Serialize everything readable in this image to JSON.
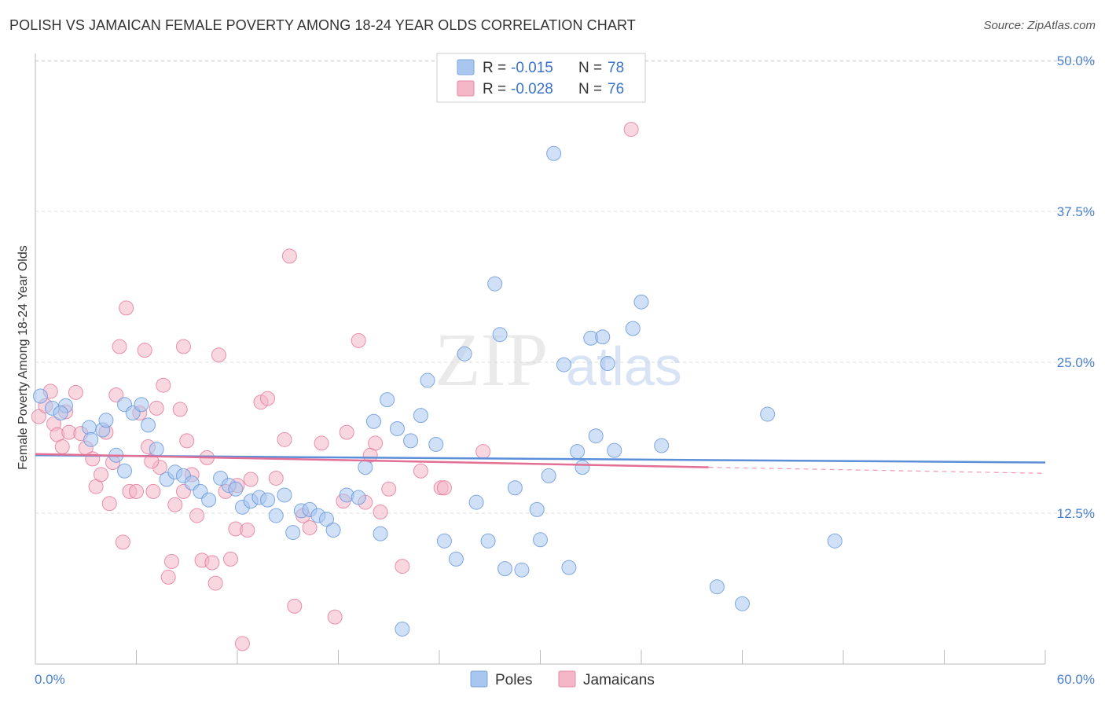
{
  "header": {
    "title": "POLISH VS JAMAICAN FEMALE POVERTY AMONG 18-24 YEAR OLDS CORRELATION CHART",
    "source": "Source: ZipAtlas.com"
  },
  "watermark": {
    "part1": "ZIP",
    "part2": "atlas"
  },
  "legend_top": {
    "rows": [
      {
        "r_label": "R =",
        "r_value": "-0.015",
        "n_label": "N =",
        "n_value": "78",
        "color": "#a9c6ef"
      },
      {
        "r_label": "R =",
        "r_value": "-0.028",
        "n_label": "N =",
        "n_value": "76",
        "color": "#f4b7c8"
      }
    ]
  },
  "legend_bottom": {
    "items": [
      {
        "label": "Poles",
        "color": "#a9c6ef"
      },
      {
        "label": "Jamaicans",
        "color": "#f4b7c8"
      }
    ]
  },
  "chart_data": {
    "type": "scatter",
    "title": "POLISH VS JAMAICAN FEMALE POVERTY AMONG 18-24 YEAR OLDS CORRELATION CHART",
    "xlabel": "",
    "ylabel": "Female Poverty Among 18-24 Year Olds",
    "xlim": [
      0,
      60
    ],
    "ylim": [
      0,
      52
    ],
    "x_tick_labels": [
      "0.0%",
      "60.0%"
    ],
    "y_ticks": [
      12.5,
      25.0,
      37.5,
      50.0
    ],
    "y_tick_labels": [
      "12.5%",
      "25.0%",
      "37.5%",
      "50.0%"
    ],
    "grid": true,
    "legend_position": "top-center",
    "series": [
      {
        "name": "Poles",
        "color": "#5b8fd9",
        "fill": "#a9c6ef",
        "trend": {
          "x": [
            0,
            60
          ],
          "y": [
            17.3,
            16.7
          ]
        },
        "points": [
          [
            0.3,
            22.2
          ],
          [
            1.0,
            21.2
          ],
          [
            1.8,
            21.4
          ],
          [
            1.5,
            20.8
          ],
          [
            3.2,
            19.6
          ],
          [
            4.0,
            19.4
          ],
          [
            3.3,
            18.6
          ],
          [
            4.2,
            20.2
          ],
          [
            4.8,
            17.3
          ],
          [
            5.3,
            21.5
          ],
          [
            5.8,
            20.8
          ],
          [
            6.3,
            21.5
          ],
          [
            6.7,
            19.8
          ],
          [
            7.2,
            17.8
          ],
          [
            7.8,
            15.3
          ],
          [
            8.3,
            15.9
          ],
          [
            8.8,
            15.6
          ],
          [
            9.3,
            15.0
          ],
          [
            9.8,
            14.3
          ],
          [
            10.3,
            13.6
          ],
          [
            11.0,
            15.4
          ],
          [
            11.5,
            14.8
          ],
          [
            11.9,
            14.5
          ],
          [
            12.3,
            13.0
          ],
          [
            12.8,
            13.5
          ],
          [
            13.3,
            13.8
          ],
          [
            13.8,
            13.6
          ],
          [
            14.3,
            12.3
          ],
          [
            14.8,
            14.0
          ],
          [
            15.3,
            10.9
          ],
          [
            15.8,
            12.7
          ],
          [
            16.3,
            12.8
          ],
          [
            16.8,
            12.3
          ],
          [
            17.3,
            12.0
          ],
          [
            17.7,
            11.1
          ],
          [
            18.5,
            14.0
          ],
          [
            19.2,
            13.8
          ],
          [
            19.6,
            16.3
          ],
          [
            20.1,
            20.1
          ],
          [
            20.5,
            10.8
          ],
          [
            20.9,
            21.9
          ],
          [
            21.5,
            19.5
          ],
          [
            22.3,
            18.5
          ],
          [
            22.9,
            20.6
          ],
          [
            23.3,
            23.5
          ],
          [
            23.8,
            18.2
          ],
          [
            24.3,
            10.2
          ],
          [
            25.0,
            8.7
          ],
          [
            25.5,
            25.7
          ],
          [
            26.2,
            13.4
          ],
          [
            26.9,
            10.2
          ],
          [
            27.3,
            31.5
          ],
          [
            27.6,
            27.3
          ],
          [
            27.9,
            7.9
          ],
          [
            28.5,
            14.6
          ],
          [
            28.9,
            7.8
          ],
          [
            29.8,
            12.8
          ],
          [
            30.0,
            10.3
          ],
          [
            30.5,
            15.6
          ],
          [
            30.8,
            42.3
          ],
          [
            31.4,
            24.8
          ],
          [
            31.7,
            8.0
          ],
          [
            32.2,
            17.6
          ],
          [
            32.5,
            16.3
          ],
          [
            33.0,
            27.0
          ],
          [
            33.3,
            18.9
          ],
          [
            33.7,
            27.1
          ],
          [
            34.0,
            24.9
          ],
          [
            34.4,
            17.7
          ],
          [
            35.5,
            27.8
          ],
          [
            36.0,
            30.0
          ],
          [
            37.2,
            18.1
          ],
          [
            40.5,
            6.4
          ],
          [
            42.0,
            5.0
          ],
          [
            43.5,
            20.7
          ],
          [
            47.5,
            10.2
          ],
          [
            21.8,
            2.9
          ],
          [
            5.3,
            16.0
          ]
        ]
      },
      {
        "name": "Jamaicans",
        "color": "#e36f94",
        "fill": "#f4b7c8",
        "trend": {
          "x": [
            0,
            40
          ],
          "y": [
            17.4,
            16.3
          ]
        },
        "trend_dashed": {
          "x": [
            40,
            60
          ],
          "y": [
            16.3,
            15.8
          ]
        },
        "points": [
          [
            0.2,
            20.5
          ],
          [
            0.6,
            21.4
          ],
          [
            0.9,
            22.6
          ],
          [
            1.1,
            19.9
          ],
          [
            1.3,
            19.0
          ],
          [
            1.6,
            18.0
          ],
          [
            1.8,
            20.9
          ],
          [
            2.0,
            19.2
          ],
          [
            2.4,
            22.5
          ],
          [
            2.7,
            19.1
          ],
          [
            3.0,
            17.9
          ],
          [
            3.4,
            17.0
          ],
          [
            3.6,
            14.7
          ],
          [
            3.9,
            15.7
          ],
          [
            4.2,
            19.2
          ],
          [
            4.4,
            13.3
          ],
          [
            4.6,
            16.7
          ],
          [
            4.8,
            22.3
          ],
          [
            5.0,
            26.3
          ],
          [
            5.2,
            10.1
          ],
          [
            5.4,
            29.5
          ],
          [
            5.6,
            14.3
          ],
          [
            6.0,
            14.3
          ],
          [
            6.2,
            20.8
          ],
          [
            6.5,
            26.0
          ],
          [
            6.7,
            18.0
          ],
          [
            7.0,
            14.3
          ],
          [
            7.2,
            21.2
          ],
          [
            7.4,
            16.3
          ],
          [
            7.6,
            23.1
          ],
          [
            7.9,
            7.2
          ],
          [
            8.1,
            8.5
          ],
          [
            8.3,
            13.2
          ],
          [
            8.6,
            21.1
          ],
          [
            8.8,
            26.3
          ],
          [
            9.0,
            18.5
          ],
          [
            9.3,
            15.7
          ],
          [
            9.6,
            12.3
          ],
          [
            9.9,
            8.6
          ],
          [
            10.2,
            17.1
          ],
          [
            10.5,
            8.4
          ],
          [
            10.7,
            6.7
          ],
          [
            10.9,
            25.6
          ],
          [
            11.3,
            14.3
          ],
          [
            11.6,
            8.7
          ],
          [
            11.9,
            11.2
          ],
          [
            12.3,
            1.7
          ],
          [
            12.6,
            11.1
          ],
          [
            12.8,
            15.3
          ],
          [
            13.4,
            21.7
          ],
          [
            13.8,
            22.0
          ],
          [
            14.3,
            15.4
          ],
          [
            14.8,
            18.6
          ],
          [
            15.1,
            33.8
          ],
          [
            15.4,
            4.8
          ],
          [
            15.9,
            12.3
          ],
          [
            16.3,
            11.3
          ],
          [
            17.0,
            18.3
          ],
          [
            17.8,
            3.9
          ],
          [
            18.3,
            13.5
          ],
          [
            18.5,
            19.2
          ],
          [
            19.2,
            26.8
          ],
          [
            19.6,
            13.4
          ],
          [
            19.9,
            17.3
          ],
          [
            20.2,
            18.3
          ],
          [
            20.5,
            12.6
          ],
          [
            21.0,
            14.5
          ],
          [
            21.8,
            8.1
          ],
          [
            22.9,
            16.0
          ],
          [
            24.1,
            14.6
          ],
          [
            24.3,
            14.6
          ],
          [
            26.6,
            17.6
          ],
          [
            35.4,
            44.3
          ],
          [
            8.8,
            14.3
          ],
          [
            12.0,
            14.8
          ],
          [
            6.9,
            16.8
          ]
        ]
      }
    ]
  }
}
